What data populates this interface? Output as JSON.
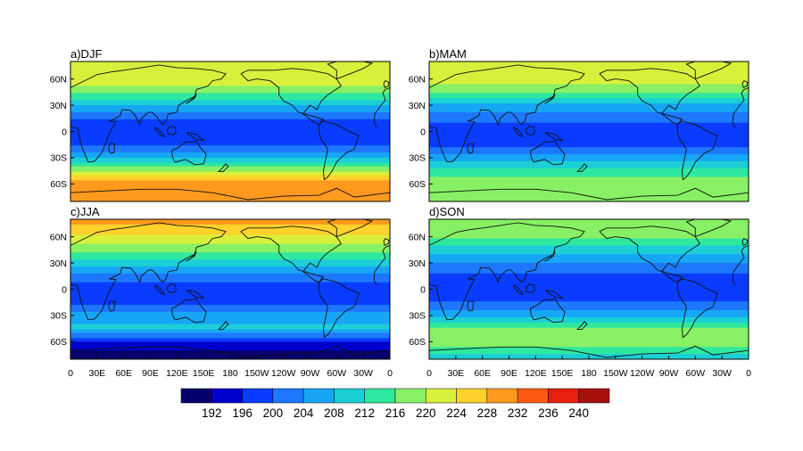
{
  "panels": [
    {
      "id": "DJF",
      "title": "a)DJF"
    },
    {
      "id": "MAM",
      "title": "b)MAM"
    },
    {
      "id": "JJA",
      "title": "c)JJA"
    },
    {
      "id": "SON",
      "title": "d)SON"
    }
  ],
  "lat_ticks": [
    "60N",
    "30N",
    "0",
    "30S",
    "60S"
  ],
  "lon_ticks": [
    "0",
    "30E",
    "60E",
    "90E",
    "120E",
    "150E",
    "180",
    "150W",
    "120W",
    "90W",
    "60W",
    "30W",
    "0"
  ],
  "colorbar": {
    "labels": [
      "192",
      "196",
      "200",
      "204",
      "208",
      "212",
      "216",
      "220",
      "224",
      "228",
      "232",
      "236",
      "240"
    ],
    "colors": [
      "#06006e",
      "#0000cc",
      "#0a3cff",
      "#1e78ff",
      "#16a6f5",
      "#1ccfd6",
      "#2fe8a0",
      "#88f064",
      "#d8f03c",
      "#ffd22d",
      "#ff9a1e",
      "#ff5a14",
      "#e6200f",
      "#a80f0f"
    ]
  },
  "map_fields": {
    "DJF": {
      "lat": [
        90,
        75,
        60,
        45,
        30,
        15,
        0,
        -15,
        -30,
        -45,
        -60,
        -75,
        -90
      ],
      "value": [
        221,
        223,
        226,
        219,
        210,
        202,
        200,
        201,
        210,
        221,
        234,
        233,
        232
      ]
    },
    "MAM": {
      "lat": [
        90,
        75,
        60,
        45,
        30,
        15,
        0,
        -15,
        -30,
        -45,
        -60,
        -75,
        -90
      ],
      "value": [
        222,
        222,
        224,
        218,
        209,
        203,
        200,
        201,
        208,
        216,
        220,
        219,
        218
      ]
    },
    "JJA": {
      "lat": [
        90,
        75,
        60,
        45,
        30,
        15,
        0,
        -15,
        -30,
        -45,
        -60,
        -75,
        -90
      ],
      "value": [
        232,
        230,
        225,
        219,
        212,
        204,
        200,
        201,
        208,
        211,
        198,
        192,
        190
      ]
    },
    "SON": {
      "lat": [
        90,
        75,
        60,
        45,
        30,
        15,
        0,
        -15,
        -30,
        -45,
        -60,
        -75,
        -90
      ],
      "value": [
        218,
        219,
        219,
        212,
        206,
        201,
        200,
        202,
        209,
        218,
        221,
        213,
        210
      ]
    }
  }
}
